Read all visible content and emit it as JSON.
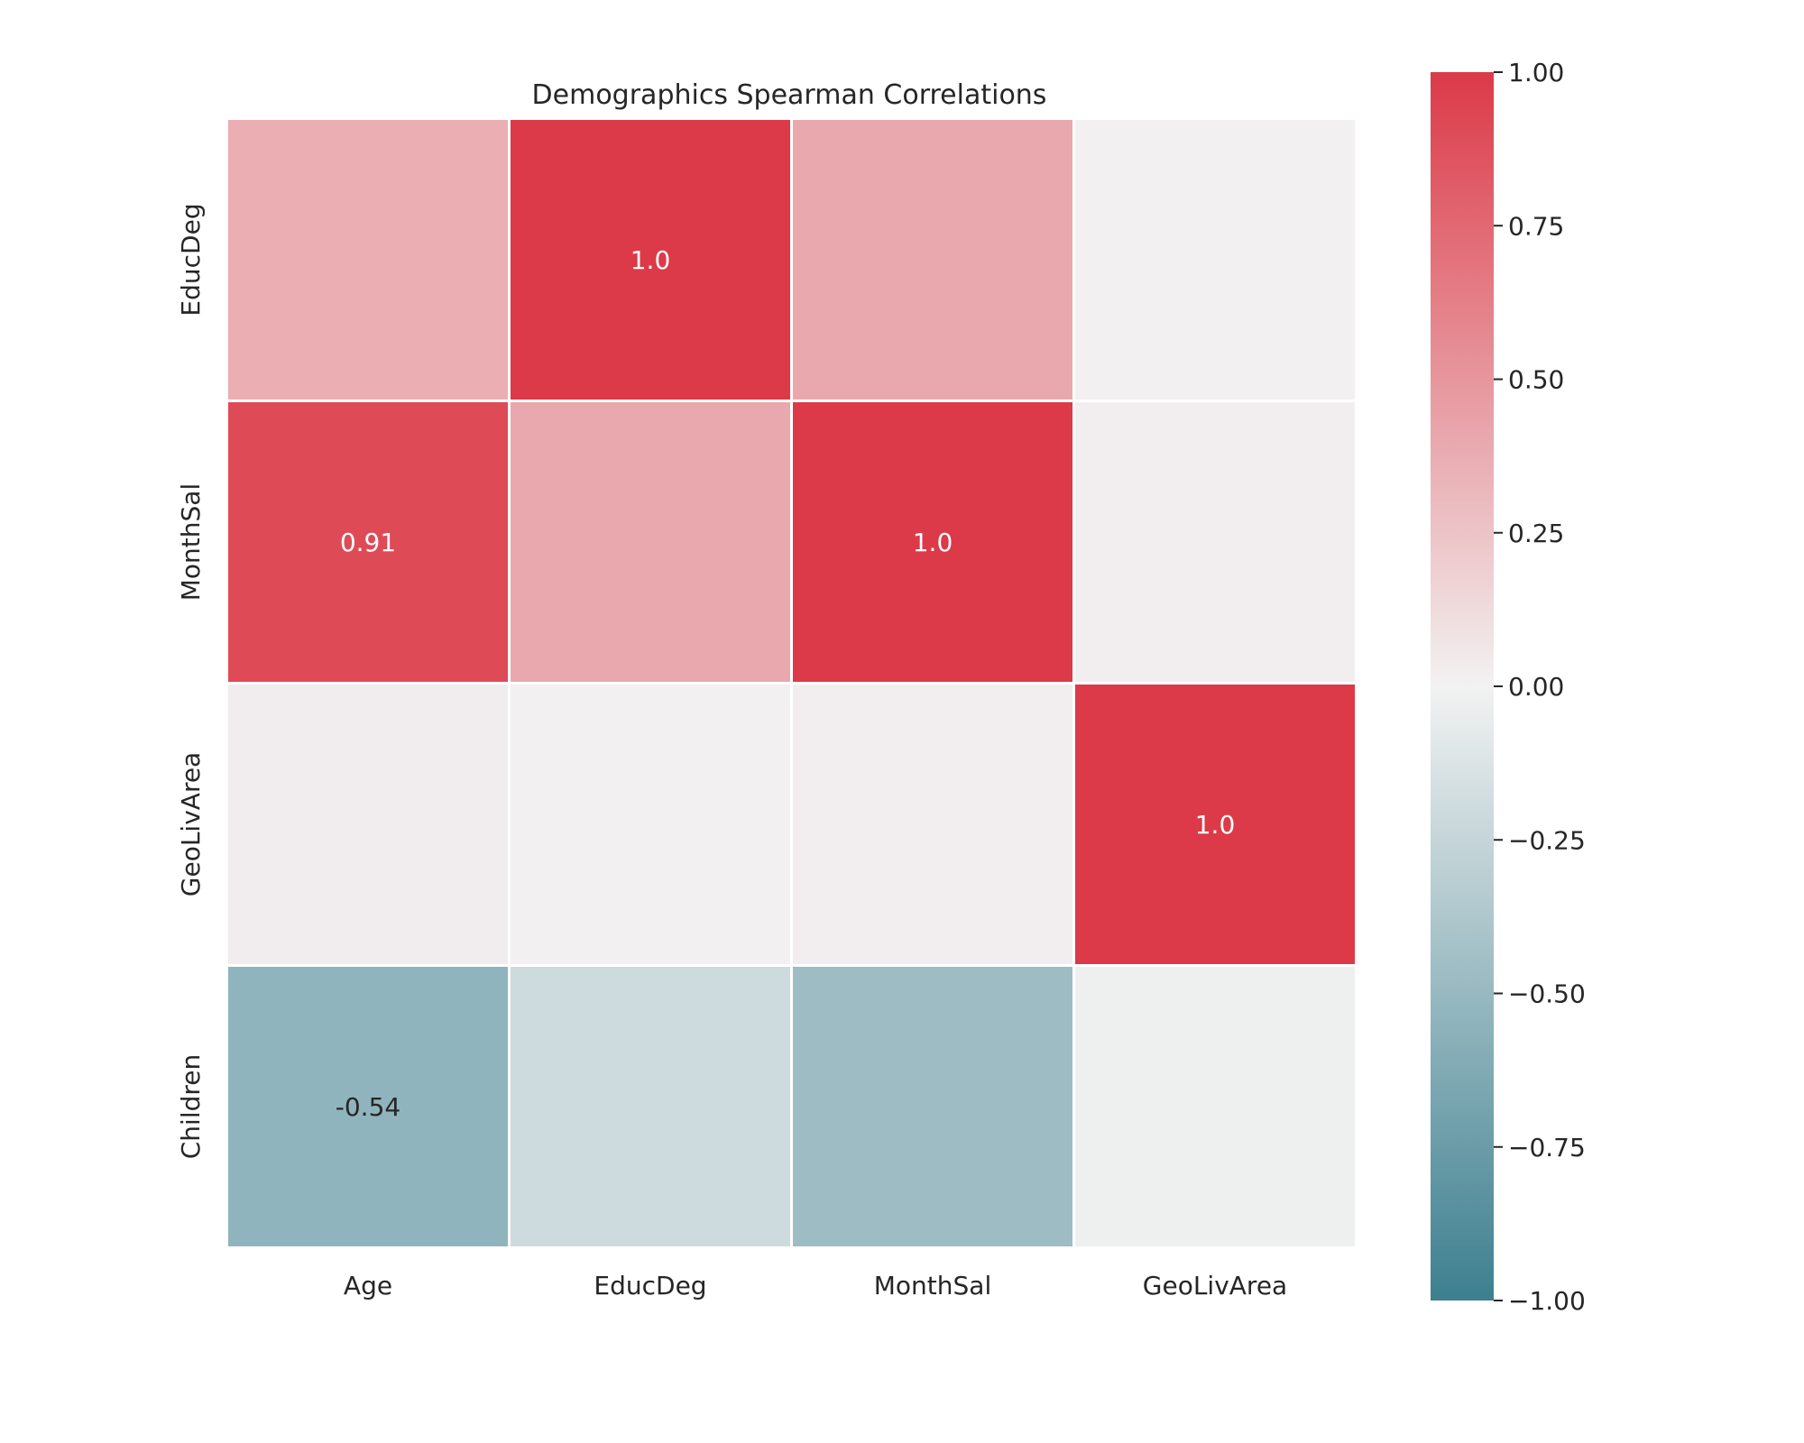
{
  "chart_data": {
    "type": "heatmap",
    "title": "Demographics Spearman Correlations",
    "x_categories": [
      "Age",
      "EducDeg",
      "MonthSal",
      "GeoLivArea"
    ],
    "y_categories": [
      "EducDeg",
      "MonthSal",
      "GeoLivArea",
      "Children"
    ],
    "values": [
      [
        0.37,
        1.0,
        0.4,
        0.01
      ],
      [
        0.91,
        0.4,
        1.0,
        0.02
      ],
      [
        0.03,
        0.01,
        0.02,
        1.0
      ],
      [
        -0.54,
        -0.2,
        -0.47,
        -0.02
      ]
    ],
    "annotations": [
      [
        "",
        "1.0",
        "",
        ""
      ],
      [
        "0.91",
        "",
        "1.0",
        ""
      ],
      [
        "",
        "",
        "",
        "1.0"
      ],
      [
        "-0.54",
        "",
        "",
        ""
      ]
    ],
    "vmin": -1.0,
    "vmax": 1.0,
    "colorbar_ticks": [
      "1.00",
      "0.75",
      "0.50",
      "0.25",
      "0.00",
      "−0.25",
      "−0.50",
      "−0.75",
      "−1.00"
    ],
    "colorbar_tick_values": [
      1.0,
      0.75,
      0.5,
      0.25,
      0.0,
      -0.25,
      -0.5,
      -0.75,
      -1.0
    ],
    "colors": {
      "negative": "#3d7f8f",
      "neutral": "#f2f2f2",
      "positive": "#dc3a48",
      "cell_border": "#ffffff",
      "annotation_light": "#ffffff",
      "annotation_dark": "#262626"
    },
    "grid": false,
    "legend": "colorbar-right"
  }
}
